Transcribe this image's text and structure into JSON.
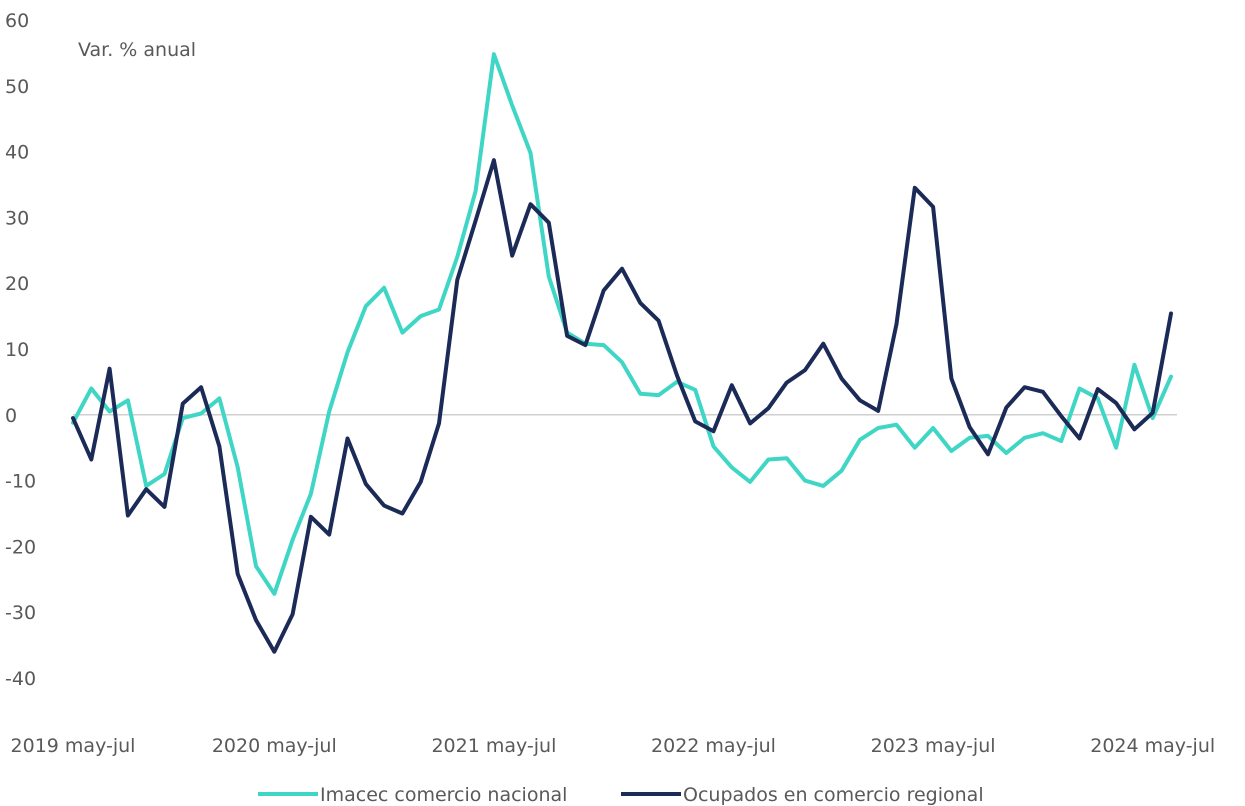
{
  "chart_data": {
    "type": "line",
    "unit_label": "Var. % anual",
    "ylim": [
      -40,
      60
    ],
    "yticks": [
      -40,
      -30,
      -20,
      -10,
      0,
      10,
      20,
      30,
      40,
      50,
      60
    ],
    "x_tick_labels": [
      "2019 may-jul",
      "2020 may-jul",
      "2021 may-jul",
      "2022 may-jul",
      "2023 may-jul",
      "2024 may-jul"
    ],
    "x_tick_indices": [
      0,
      11,
      23,
      35,
      47,
      59
    ],
    "grid": false,
    "legend_position": "bottom",
    "series": [
      {
        "name": "Imacec comercio nacional",
        "color": "#3fd6c6",
        "values": [
          -1.2,
          4.0,
          0.5,
          2.2,
          -10.8,
          -9.0,
          -0.5,
          0.2,
          2.5,
          -8.0,
          -23.0,
          -27.2,
          -19.0,
          -12.0,
          0.5,
          9.5,
          16.5,
          19.3,
          12.5,
          15.0,
          16.0,
          24.0,
          34.0,
          54.8,
          47.0,
          39.8,
          21.0,
          12.5,
          10.8,
          10.6,
          8.0,
          3.2,
          3.0,
          5.0,
          3.8,
          -4.8,
          -8.0,
          -10.2,
          -6.8,
          -6.6,
          -10.0,
          -10.8,
          -8.5,
          -3.8,
          -2.0,
          -1.5,
          -5.0,
          -2.0,
          -5.5,
          -3.5,
          -3.2,
          -5.8,
          -3.5,
          -2.8,
          -4.0,
          4.0,
          2.5,
          -5.0,
          7.6,
          -0.5,
          5.8
        ]
      },
      {
        "name": "Ocupados en comercio regional",
        "color": "#1b2a57",
        "values": [
          -0.5,
          -6.8,
          7.0,
          -15.3,
          -11.3,
          -14.0,
          1.7,
          4.2,
          -4.8,
          -24.2,
          -31.2,
          -36.0,
          -30.3,
          -15.5,
          -18.2,
          -3.6,
          -10.5,
          -13.8,
          -15.0,
          -10.2,
          -1.3,
          20.5,
          29.5,
          38.7,
          24.2,
          32.0,
          29.2,
          12.0,
          10.6,
          18.9,
          22.2,
          17.0,
          14.3,
          6.0,
          -1.0,
          -2.5,
          4.5,
          -1.3,
          1.0,
          4.9,
          6.8,
          10.8,
          5.5,
          2.2,
          0.6,
          13.8,
          34.5,
          31.6,
          5.5,
          -1.9,
          -6.0,
          1.1,
          4.2,
          3.5,
          -0.2,
          -3.6,
          3.9,
          1.8,
          -2.2,
          0.3,
          15.4
        ]
      }
    ]
  }
}
